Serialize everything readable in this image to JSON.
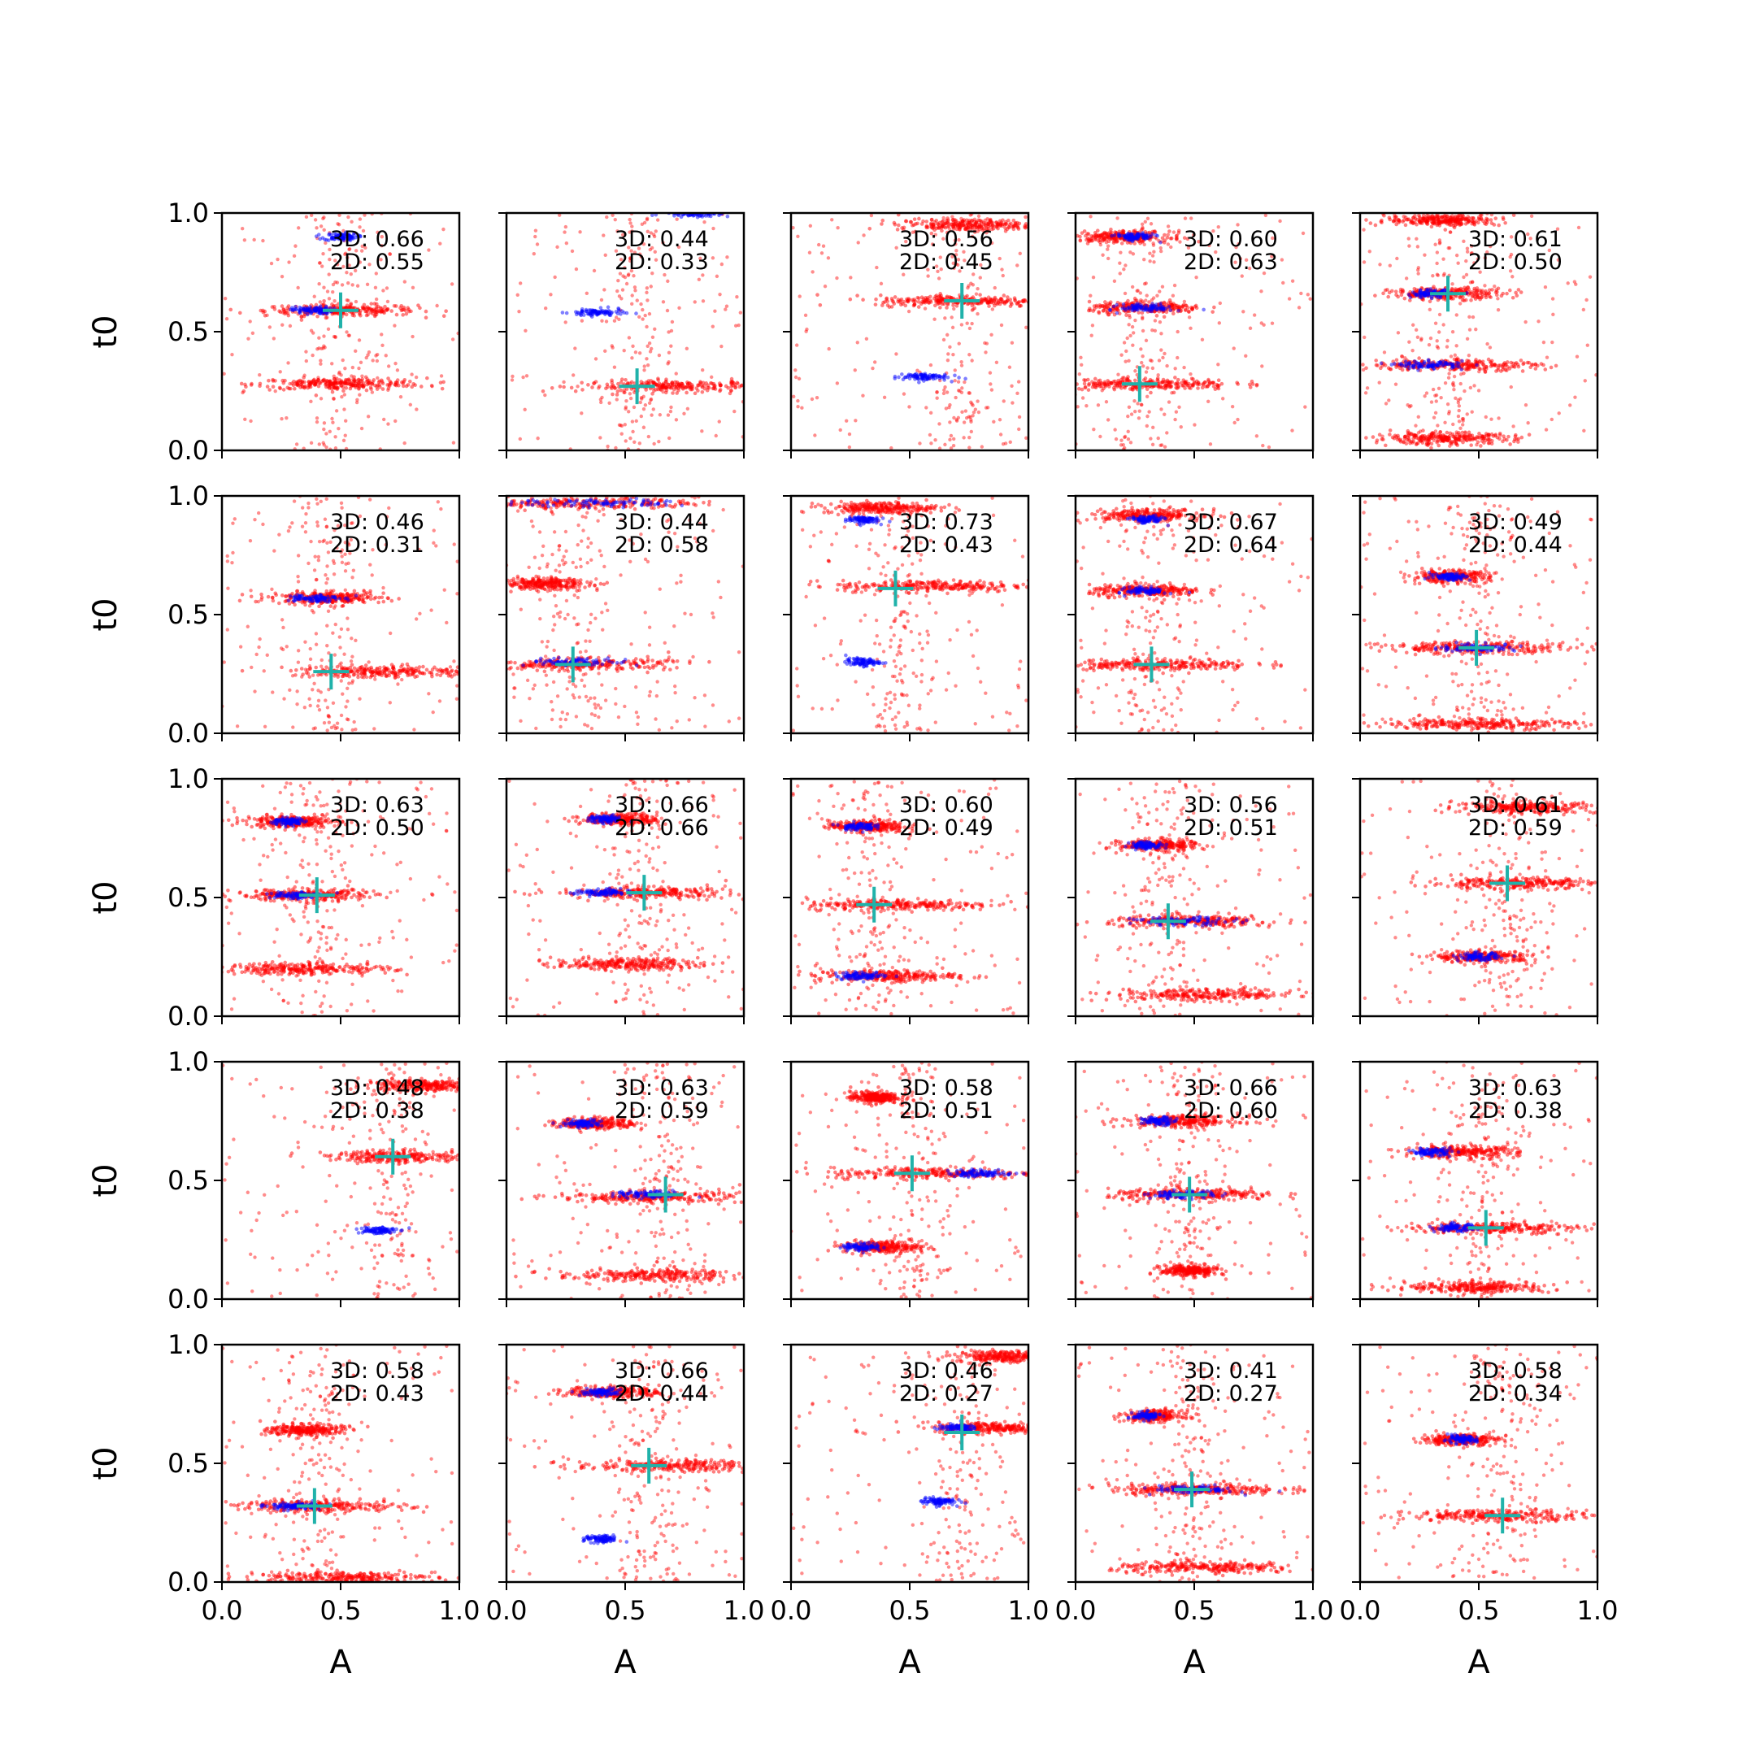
{
  "figure": {
    "xlabel": "A",
    "ylabel": "t0",
    "xticks": [
      "0.0",
      "0.5",
      "1.0"
    ],
    "yticks": [
      "0.0",
      "0.5",
      "1.0"
    ],
    "colors": {
      "samples": "#ff0000",
      "highlight": "#0000ff",
      "marker": "#20b2aa"
    }
  },
  "chart_data": [
    {
      "type": "scatter",
      "row": 0,
      "col": 0,
      "xlim": [
        0,
        1
      ],
      "ylim": [
        0,
        1
      ],
      "annot3d": "3D: 0.66",
      "annot2d": "2D: 0.55",
      "marker": [
        0.5,
        0.59
      ],
      "clusters": [
        {
          "t0": 0.59,
          "a": 0.5,
          "spread": 0.16
        },
        {
          "t0": 0.28,
          "a": 0.5,
          "spread": 0.18
        }
      ],
      "blue": [
        {
          "t0": 0.9,
          "a": 0.5,
          "spread": 0.05
        },
        {
          "t0": 0.59,
          "a": 0.38,
          "spread": 0.06
        }
      ]
    },
    {
      "type": "scatter",
      "row": 0,
      "col": 1,
      "xlim": [
        0,
        1
      ],
      "ylim": [
        0,
        1
      ],
      "annot3d": "3D: 0.44",
      "annot2d": "2D: 0.33",
      "marker": [
        0.55,
        0.27
      ],
      "clusters": [
        {
          "t0": 0.27,
          "a": 0.72,
          "spread": 0.2
        }
      ],
      "blue": [
        {
          "t0": 0.58,
          "a": 0.38,
          "spread": 0.08
        },
        {
          "t0": 1.0,
          "a": 0.8,
          "spread": 0.1
        }
      ]
    },
    {
      "type": "scatter",
      "row": 0,
      "col": 2,
      "xlim": [
        0,
        1
      ],
      "ylim": [
        0,
        1
      ],
      "annot3d": "3D: 0.56",
      "annot2d": "2D: 0.45",
      "marker": [
        0.72,
        0.63
      ],
      "clusters": [
        {
          "t0": 0.63,
          "a": 0.72,
          "spread": 0.18
        },
        {
          "t0": 0.95,
          "a": 0.75,
          "spread": 0.15
        }
      ],
      "blue": [
        {
          "t0": 0.31,
          "a": 0.55,
          "spread": 0.08
        }
      ]
    },
    {
      "type": "scatter",
      "row": 0,
      "col": 3,
      "xlim": [
        0,
        1
      ],
      "ylim": [
        0,
        1
      ],
      "annot3d": "3D: 0.60",
      "annot2d": "2D: 0.63",
      "marker": [
        0.27,
        0.28
      ],
      "clusters": [
        {
          "t0": 0.28,
          "a": 0.3,
          "spread": 0.18
        },
        {
          "t0": 0.6,
          "a": 0.3,
          "spread": 0.12
        },
        {
          "t0": 0.9,
          "a": 0.2,
          "spread": 0.1
        }
      ],
      "blue": [
        {
          "t0": 0.9,
          "a": 0.25,
          "spread": 0.06
        },
        {
          "t0": 0.6,
          "a": 0.3,
          "spread": 0.08
        }
      ]
    },
    {
      "type": "scatter",
      "row": 0,
      "col": 4,
      "xlim": [
        0,
        1
      ],
      "ylim": [
        0,
        1
      ],
      "annot3d": "3D: 0.61",
      "annot2d": "2D: 0.50",
      "marker": [
        0.37,
        0.66
      ],
      "clusters": [
        {
          "t0": 0.66,
          "a": 0.37,
          "spread": 0.12
        },
        {
          "t0": 0.36,
          "a": 0.4,
          "spread": 0.18
        },
        {
          "t0": 0.05,
          "a": 0.35,
          "spread": 0.15
        },
        {
          "t0": 0.97,
          "a": 0.35,
          "spread": 0.12
        }
      ],
      "blue": [
        {
          "t0": 0.36,
          "a": 0.3,
          "spread": 0.1
        },
        {
          "t0": 0.66,
          "a": 0.3,
          "spread": 0.06
        }
      ]
    },
    {
      "type": "scatter",
      "row": 1,
      "col": 0,
      "xlim": [
        0,
        1
      ],
      "ylim": [
        0,
        1
      ],
      "annot3d": "3D: 0.46",
      "annot2d": "2D: 0.31",
      "marker": [
        0.46,
        0.26
      ],
      "clusters": [
        {
          "t0": 0.26,
          "a": 0.7,
          "spread": 0.2
        },
        {
          "t0": 0.57,
          "a": 0.45,
          "spread": 0.12
        }
      ],
      "blue": [
        {
          "t0": 0.57,
          "a": 0.38,
          "spread": 0.08
        }
      ]
    },
    {
      "type": "scatter",
      "row": 1,
      "col": 1,
      "xlim": [
        0,
        1
      ],
      "ylim": [
        0,
        1
      ],
      "annot3d": "3D: 0.44",
      "annot2d": "2D: 0.58",
      "marker": [
        0.28,
        0.29
      ],
      "clusters": [
        {
          "t0": 0.29,
          "a": 0.3,
          "spread": 0.2
        },
        {
          "t0": 0.63,
          "a": 0.15,
          "spread": 0.1
        },
        {
          "t0": 0.97,
          "a": 0.3,
          "spread": 0.25
        }
      ],
      "blue": [
        {
          "t0": 0.3,
          "a": 0.3,
          "spread": 0.15
        },
        {
          "t0": 0.97,
          "a": 0.4,
          "spread": 0.25
        }
      ]
    },
    {
      "type": "scatter",
      "row": 1,
      "col": 2,
      "xlim": [
        0,
        1
      ],
      "ylim": [
        0,
        1
      ],
      "annot3d": "3D: 0.73",
      "annot2d": "2D: 0.43",
      "marker": [
        0.44,
        0.61
      ],
      "clusters": [
        {
          "t0": 0.62,
          "a": 0.6,
          "spread": 0.2
        },
        {
          "t0": 0.95,
          "a": 0.38,
          "spread": 0.12
        }
      ],
      "blue": [
        {
          "t0": 0.3,
          "a": 0.3,
          "spread": 0.05
        },
        {
          "t0": 0.9,
          "a": 0.3,
          "spread": 0.05
        }
      ]
    },
    {
      "type": "scatter",
      "row": 1,
      "col": 3,
      "xlim": [
        0,
        1
      ],
      "ylim": [
        0,
        1
      ],
      "annot3d": "3D: 0.67",
      "annot2d": "2D: 0.64",
      "marker": [
        0.32,
        0.29
      ],
      "clusters": [
        {
          "t0": 0.29,
          "a": 0.35,
          "spread": 0.2
        },
        {
          "t0": 0.6,
          "a": 0.3,
          "spread": 0.12
        },
        {
          "t0": 0.92,
          "a": 0.3,
          "spread": 0.12
        }
      ],
      "blue": [
        {
          "t0": 0.9,
          "a": 0.3,
          "spread": 0.05
        },
        {
          "t0": 0.6,
          "a": 0.3,
          "spread": 0.06
        }
      ]
    },
    {
      "type": "scatter",
      "row": 1,
      "col": 4,
      "xlim": [
        0,
        1
      ],
      "ylim": [
        0,
        1
      ],
      "annot3d": "3D: 0.49",
      "annot2d": "2D: 0.44",
      "marker": [
        0.49,
        0.36
      ],
      "clusters": [
        {
          "t0": 0.36,
          "a": 0.5,
          "spread": 0.2
        },
        {
          "t0": 0.04,
          "a": 0.5,
          "spread": 0.2
        },
        {
          "t0": 0.66,
          "a": 0.38,
          "spread": 0.08
        }
      ],
      "blue": [
        {
          "t0": 0.66,
          "a": 0.38,
          "spread": 0.06
        },
        {
          "t0": 0.36,
          "a": 0.5,
          "spread": 0.12
        }
      ]
    },
    {
      "type": "scatter",
      "row": 2,
      "col": 0,
      "xlim": [
        0,
        1
      ],
      "ylim": [
        0,
        1
      ],
      "annot3d": "3D: 0.63",
      "annot2d": "2D: 0.50",
      "marker": [
        0.4,
        0.51
      ],
      "clusters": [
        {
          "t0": 0.51,
          "a": 0.35,
          "spread": 0.15
        },
        {
          "t0": 0.2,
          "a": 0.35,
          "spread": 0.18
        },
        {
          "t0": 0.82,
          "a": 0.3,
          "spread": 0.1
        }
      ],
      "blue": [
        {
          "t0": 0.51,
          "a": 0.3,
          "spread": 0.08
        },
        {
          "t0": 0.82,
          "a": 0.28,
          "spread": 0.05
        }
      ]
    },
    {
      "type": "scatter",
      "row": 2,
      "col": 1,
      "xlim": [
        0,
        1
      ],
      "ylim": [
        0,
        1
      ],
      "annot3d": "3D: 0.66",
      "annot2d": "2D: 0.66",
      "marker": [
        0.58,
        0.52
      ],
      "clusters": [
        {
          "t0": 0.52,
          "a": 0.58,
          "spread": 0.18
        },
        {
          "t0": 0.22,
          "a": 0.5,
          "spread": 0.15
        },
        {
          "t0": 0.83,
          "a": 0.48,
          "spread": 0.08
        }
      ],
      "blue": [
        {
          "t0": 0.83,
          "a": 0.42,
          "spread": 0.05
        },
        {
          "t0": 0.52,
          "a": 0.4,
          "spread": 0.08
        }
      ]
    },
    {
      "type": "scatter",
      "row": 2,
      "col": 2,
      "xlim": [
        0,
        1
      ],
      "ylim": [
        0,
        1
      ],
      "annot3d": "3D: 0.60",
      "annot2d": "2D: 0.49",
      "marker": [
        0.35,
        0.47
      ],
      "clusters": [
        {
          "t0": 0.47,
          "a": 0.45,
          "spread": 0.2
        },
        {
          "t0": 0.17,
          "a": 0.4,
          "spread": 0.15
        },
        {
          "t0": 0.8,
          "a": 0.32,
          "spread": 0.08
        }
      ],
      "blue": [
        {
          "t0": 0.17,
          "a": 0.3,
          "spread": 0.08
        },
        {
          "t0": 0.8,
          "a": 0.28,
          "spread": 0.05
        }
      ]
    },
    {
      "type": "scatter",
      "row": 2,
      "col": 3,
      "xlim": [
        0,
        1
      ],
      "ylim": [
        0,
        1
      ],
      "annot3d": "3D: 0.56",
      "annot2d": "2D: 0.51",
      "marker": [
        0.39,
        0.4
      ],
      "clusters": [
        {
          "t0": 0.4,
          "a": 0.5,
          "spread": 0.18
        },
        {
          "t0": 0.09,
          "a": 0.55,
          "spread": 0.2
        },
        {
          "t0": 0.72,
          "a": 0.35,
          "spread": 0.08
        }
      ],
      "blue": [
        {
          "t0": 0.4,
          "a": 0.45,
          "spread": 0.15
        },
        {
          "t0": 0.72,
          "a": 0.3,
          "spread": 0.05
        }
      ]
    },
    {
      "type": "scatter",
      "row": 2,
      "col": 4,
      "xlim": [
        0,
        1
      ],
      "ylim": [
        0,
        1
      ],
      "annot3d": "3D: 0.61",
      "annot2d": "2D: 0.59",
      "marker": [
        0.62,
        0.56
      ],
      "clusters": [
        {
          "t0": 0.56,
          "a": 0.65,
          "spread": 0.18
        },
        {
          "t0": 0.88,
          "a": 0.7,
          "spread": 0.15
        },
        {
          "t0": 0.25,
          "a": 0.52,
          "spread": 0.1
        }
      ],
      "blue": [
        {
          "t0": 0.25,
          "a": 0.5,
          "spread": 0.06
        }
      ]
    },
    {
      "type": "scatter",
      "row": 3,
      "col": 0,
      "xlim": [
        0,
        1
      ],
      "ylim": [
        0,
        1
      ],
      "annot3d": "3D: 0.48",
      "annot2d": "2D: 0.38",
      "marker": [
        0.72,
        0.6
      ],
      "clusters": [
        {
          "t0": 0.6,
          "a": 0.75,
          "spread": 0.15
        },
        {
          "t0": 0.9,
          "a": 0.85,
          "spread": 0.12
        }
      ],
      "blue": [
        {
          "t0": 0.29,
          "a": 0.65,
          "spread": 0.06
        }
      ]
    },
    {
      "type": "scatter",
      "row": 3,
      "col": 1,
      "xlim": [
        0,
        1
      ],
      "ylim": [
        0,
        1
      ],
      "annot3d": "3D: 0.63",
      "annot2d": "2D: 0.59",
      "marker": [
        0.67,
        0.44
      ],
      "clusters": [
        {
          "t0": 0.43,
          "a": 0.6,
          "spread": 0.2
        },
        {
          "t0": 0.1,
          "a": 0.6,
          "spread": 0.2
        },
        {
          "t0": 0.74,
          "a": 0.38,
          "spread": 0.08
        }
      ],
      "blue": [
        {
          "t0": 0.74,
          "a": 0.32,
          "spread": 0.06
        },
        {
          "t0": 0.44,
          "a": 0.6,
          "spread": 0.1
        }
      ]
    },
    {
      "type": "scatter",
      "row": 3,
      "col": 2,
      "xlim": [
        0,
        1
      ],
      "ylim": [
        0,
        1
      ],
      "annot3d": "3D: 0.58",
      "annot2d": "2D: 0.51",
      "marker": [
        0.51,
        0.53
      ],
      "clusters": [
        {
          "t0": 0.53,
          "a": 0.6,
          "spread": 0.22
        },
        {
          "t0": 0.22,
          "a": 0.38,
          "spread": 0.08
        },
        {
          "t0": 0.85,
          "a": 0.35,
          "spread": 0.05
        }
      ],
      "blue": [
        {
          "t0": 0.22,
          "a": 0.3,
          "spread": 0.06
        },
        {
          "t0": 0.53,
          "a": 0.8,
          "spread": 0.1
        }
      ]
    },
    {
      "type": "scatter",
      "row": 3,
      "col": 3,
      "xlim": [
        0,
        1
      ],
      "ylim": [
        0,
        1
      ],
      "annot3d": "3D: 0.66",
      "annot2d": "2D: 0.60",
      "marker": [
        0.48,
        0.44
      ],
      "clusters": [
        {
          "t0": 0.44,
          "a": 0.5,
          "spread": 0.18
        },
        {
          "t0": 0.75,
          "a": 0.45,
          "spread": 0.12
        },
        {
          "t0": 0.12,
          "a": 0.48,
          "spread": 0.06
        }
      ],
      "blue": [
        {
          "t0": 0.44,
          "a": 0.45,
          "spread": 0.1
        },
        {
          "t0": 0.75,
          "a": 0.35,
          "spread": 0.05
        }
      ]
    },
    {
      "type": "scatter",
      "row": 3,
      "col": 4,
      "xlim": [
        0,
        1
      ],
      "ylim": [
        0,
        1
      ],
      "annot3d": "3D: 0.63",
      "annot2d": "2D: 0.38",
      "marker": [
        0.53,
        0.3
      ],
      "clusters": [
        {
          "t0": 0.3,
          "a": 0.55,
          "spread": 0.18
        },
        {
          "t0": 0.62,
          "a": 0.42,
          "spread": 0.12
        },
        {
          "t0": 0.05,
          "a": 0.5,
          "spread": 0.15
        }
      ],
      "blue": [
        {
          "t0": 0.62,
          "a": 0.3,
          "spread": 0.06
        },
        {
          "t0": 0.3,
          "a": 0.4,
          "spread": 0.06
        }
      ]
    },
    {
      "type": "scatter",
      "row": 4,
      "col": 0,
      "xlim": [
        0,
        1
      ],
      "ylim": [
        0,
        1
      ],
      "annot3d": "3D: 0.58",
      "annot2d": "2D: 0.43",
      "marker": [
        0.39,
        0.32
      ],
      "clusters": [
        {
          "t0": 0.32,
          "a": 0.42,
          "spread": 0.18
        },
        {
          "t0": 0.02,
          "a": 0.5,
          "spread": 0.2
        },
        {
          "t0": 0.64,
          "a": 0.35,
          "spread": 0.08
        }
      ],
      "blue": [
        {
          "t0": 0.32,
          "a": 0.3,
          "spread": 0.08
        }
      ]
    },
    {
      "type": "scatter",
      "row": 4,
      "col": 1,
      "xlim": [
        0,
        1
      ],
      "ylim": [
        0,
        1
      ],
      "annot3d": "3D: 0.66",
      "annot2d": "2D: 0.44",
      "marker": [
        0.6,
        0.49
      ],
      "clusters": [
        {
          "t0": 0.49,
          "a": 0.68,
          "spread": 0.2
        },
        {
          "t0": 0.8,
          "a": 0.45,
          "spread": 0.1
        }
      ],
      "blue": [
        {
          "t0": 0.8,
          "a": 0.4,
          "spread": 0.06
        },
        {
          "t0": 0.18,
          "a": 0.4,
          "spread": 0.05
        }
      ]
    },
    {
      "type": "scatter",
      "row": 4,
      "col": 2,
      "xlim": [
        0,
        1
      ],
      "ylim": [
        0,
        1
      ],
      "annot3d": "3D: 0.46",
      "annot2d": "2D: 0.27",
      "marker": [
        0.72,
        0.63
      ],
      "clusters": [
        {
          "t0": 0.65,
          "a": 0.85,
          "spread": 0.12
        },
        {
          "t0": 0.95,
          "a": 0.9,
          "spread": 0.1
        }
      ],
      "blue": [
        {
          "t0": 0.34,
          "a": 0.62,
          "spread": 0.05
        },
        {
          "t0": 0.65,
          "a": 0.7,
          "spread": 0.06
        }
      ]
    },
    {
      "type": "scatter",
      "row": 4,
      "col": 3,
      "xlim": [
        0,
        1
      ],
      "ylim": [
        0,
        1
      ],
      "annot3d": "3D: 0.41",
      "annot2d": "2D: 0.27",
      "marker": [
        0.49,
        0.39
      ],
      "clusters": [
        {
          "t0": 0.39,
          "a": 0.5,
          "spread": 0.18
        },
        {
          "t0": 0.06,
          "a": 0.55,
          "spread": 0.2
        },
        {
          "t0": 0.7,
          "a": 0.33,
          "spread": 0.06
        }
      ],
      "blue": [
        {
          "t0": 0.39,
          "a": 0.5,
          "spread": 0.12
        },
        {
          "t0": 0.7,
          "a": 0.3,
          "spread": 0.04
        }
      ]
    },
    {
      "type": "scatter",
      "row": 4,
      "col": 4,
      "xlim": [
        0,
        1
      ],
      "ylim": [
        0,
        1
      ],
      "annot3d": "3D: 0.58",
      "annot2d": "2D: 0.34",
      "marker": [
        0.6,
        0.28
      ],
      "clusters": [
        {
          "t0": 0.28,
          "a": 0.6,
          "spread": 0.2
        },
        {
          "t0": 0.6,
          "a": 0.42,
          "spread": 0.08
        }
      ],
      "blue": [
        {
          "t0": 0.6,
          "a": 0.42,
          "spread": 0.05
        }
      ]
    }
  ]
}
